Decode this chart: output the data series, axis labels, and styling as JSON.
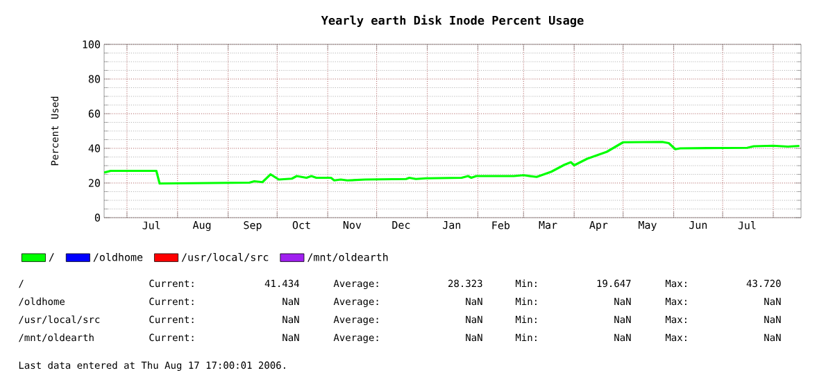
{
  "chart_data": {
    "type": "line",
    "title": "Yearly earth Disk Inode Percent Usage",
    "ylabel": "Percent Used",
    "xlim": [
      "2005-06-17",
      "2006-08-18"
    ],
    "ylim": [
      0,
      100
    ],
    "yticks": [
      0,
      20,
      40,
      60,
      80,
      100
    ],
    "xticks": [
      {
        "value": "2005-07-01",
        "label": null
      },
      {
        "value": "2005-07-16",
        "label": "Jul"
      },
      {
        "value": "2005-08-01",
        "label": null
      },
      {
        "value": "2005-08-16",
        "label": "Aug"
      },
      {
        "value": "2005-09-01",
        "label": null
      },
      {
        "value": "2005-09-16",
        "label": "Sep"
      },
      {
        "value": "2005-10-01",
        "label": null
      },
      {
        "value": "2005-10-16",
        "label": "Oct"
      },
      {
        "value": "2005-11-01",
        "label": null
      },
      {
        "value": "2005-11-16",
        "label": "Nov"
      },
      {
        "value": "2005-12-01",
        "label": null
      },
      {
        "value": "2005-12-16",
        "label": "Dec"
      },
      {
        "value": "2006-01-01",
        "label": null
      },
      {
        "value": "2006-01-16",
        "label": "Jan"
      },
      {
        "value": "2006-02-01",
        "label": null
      },
      {
        "value": "2006-02-15",
        "label": "Feb"
      },
      {
        "value": "2006-03-01",
        "label": null
      },
      {
        "value": "2006-03-16",
        "label": "Mar"
      },
      {
        "value": "2006-04-01",
        "label": null
      },
      {
        "value": "2006-04-16",
        "label": "Apr"
      },
      {
        "value": "2006-05-01",
        "label": null
      },
      {
        "value": "2006-05-16",
        "label": "May"
      },
      {
        "value": "2006-06-01",
        "label": null
      },
      {
        "value": "2006-06-16",
        "label": "Jun"
      },
      {
        "value": "2006-07-01",
        "label": null
      },
      {
        "value": "2006-07-16",
        "label": "Jul"
      },
      {
        "value": "2006-08-01",
        "label": null
      }
    ],
    "grid": true,
    "legend": "bottom",
    "marker": "none",
    "line_style": "solid",
    "series": [
      {
        "name": "/",
        "color": "#00ff00",
        "x": [
          "2005-06-17",
          "2005-06-21",
          "2005-07-19",
          "2005-07-21",
          "2005-09-14",
          "2005-09-17",
          "2005-09-22",
          "2005-09-27",
          "2005-10-02",
          "2005-10-10",
          "2005-10-13",
          "2005-10-19",
          "2005-10-22",
          "2005-10-25",
          "2005-11-03",
          "2005-11-05",
          "2005-11-09",
          "2005-11-13",
          "2005-11-24",
          "2005-12-19",
          "2005-12-21",
          "2005-12-25",
          "2005-12-31",
          "2006-01-22",
          "2006-01-26",
          "2006-01-28",
          "2006-01-31",
          "2006-02-23",
          "2006-03-01",
          "2006-03-09",
          "2006-03-18",
          "2006-03-26",
          "2006-03-30",
          "2006-04-01",
          "2006-04-09",
          "2006-04-21",
          "2006-05-01",
          "2006-05-25",
          "2006-05-29",
          "2006-06-02",
          "2006-06-05",
          "2006-07-16",
          "2006-07-20",
          "2006-08-01",
          "2006-08-10",
          "2006-08-17"
        ],
        "values": [
          26,
          27,
          27,
          19.7,
          20.2,
          21,
          20.5,
          25,
          22,
          22.5,
          24,
          23,
          24,
          23,
          23,
          21.5,
          22,
          21.5,
          22,
          22.3,
          23,
          22.3,
          22.7,
          23,
          24,
          23,
          24,
          24,
          24.5,
          23.5,
          26.5,
          30.5,
          32,
          30.2,
          34,
          38,
          43.5,
          43.7,
          43,
          39.5,
          40,
          40.3,
          41.2,
          41.5,
          41,
          41.4
        ]
      },
      {
        "name": "/oldhome",
        "color": "#0000ff"
      },
      {
        "name": "/usr/local/src",
        "color": "#ff0000"
      },
      {
        "name": "/mnt/oldearth",
        "color": "#a020f0"
      }
    ],
    "annotations": [
      "/",
      "Current:",
      "41.434",
      "Average:",
      "28.323",
      "Min:",
      "19.647",
      "Max:",
      "43.720",
      "/oldhome",
      "Current:",
      "NaN",
      "Average:",
      "NaN",
      "Min:",
      "NaN",
      "Max:",
      "NaN",
      "/usr/local/src",
      "Current:",
      "NaN",
      "Average:",
      "NaN",
      "Min:",
      "NaN",
      "Max:",
      "NaN",
      "/mnt/oldearth",
      "Current:",
      "NaN",
      "Average:",
      "NaN",
      "Min:",
      "NaN",
      "Max:",
      "NaN",
      "Last data entered at Thu Aug 17 17:00:01 2006."
    ]
  }
}
